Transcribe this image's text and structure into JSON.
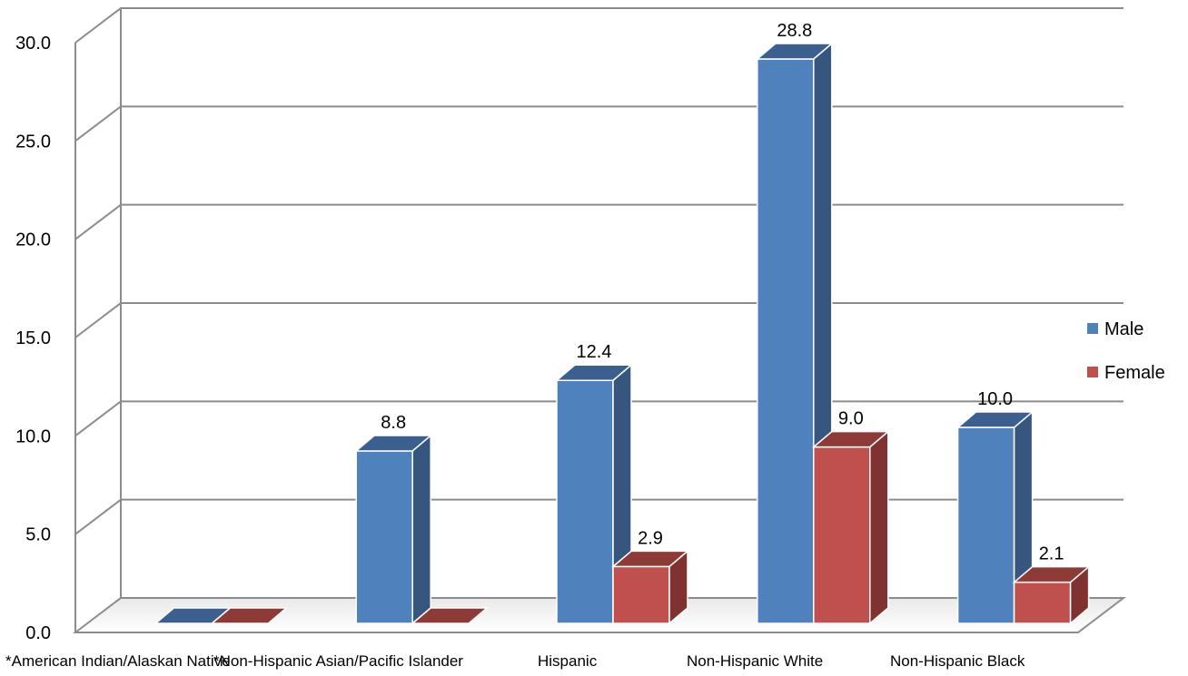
{
  "chart_data": {
    "type": "bar",
    "title": "",
    "xlabel": "",
    "ylabel": "",
    "ylim": [
      0,
      30
    ],
    "yticks": [
      "0.0",
      "5.0",
      "10.0",
      "15.0",
      "20.0",
      "25.0",
      "30.0"
    ],
    "grid": true,
    "legend_position": "right",
    "categories": [
      "*American Indian/Alaskan Native",
      "*Non-Hispanic Asian/Pacific Islander",
      "Hispanic",
      "Non-Hispanic White",
      "Non-Hispanic Black"
    ],
    "series": [
      {
        "name": "Male",
        "color": "#4f81bd",
        "side_color": "#36557f",
        "top_color": "#3b5f8f",
        "values": [
          0,
          8.8,
          12.4,
          28.8,
          10.0
        ],
        "labels": [
          null,
          "8.8",
          "12.4",
          "28.8",
          "10.0"
        ]
      },
      {
        "name": "Female",
        "color": "#c0504d",
        "side_color": "#7f3230",
        "top_color": "#8e3a37",
        "values": [
          0,
          0,
          2.9,
          9.0,
          2.1
        ],
        "labels": [
          null,
          null,
          "2.9",
          "9.0",
          "2.1"
        ]
      }
    ]
  }
}
